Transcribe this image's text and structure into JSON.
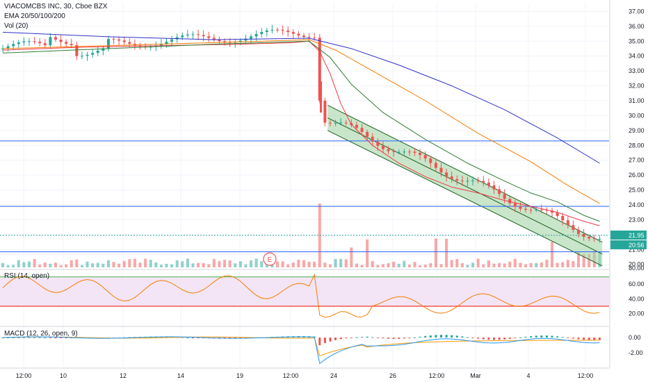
{
  "header": {
    "symbol_line": "VIACOMCBS INC, 30, Cboe BZX",
    "ema_line": "EMA 20/50/100/200",
    "vol_line": "Vol (20)"
  },
  "panels": {
    "rsi_label": "RSI (14, open)",
    "macd_label": "MACD (12, 26, open, 9)"
  },
  "price_axis": {
    "ticks": [
      "37.00",
      "36.00",
      "35.00",
      "34.00",
      "33.00",
      "32.00",
      "31.00",
      "30.00",
      "29.00",
      "28.00",
      "27.00",
      "26.00",
      "25.00",
      "24.00",
      "23.00",
      "22.00",
      "21.00",
      "20.00"
    ],
    "last_price": "21.95",
    "countdown": "20:56",
    "vol_tick": "80.00"
  },
  "rsi_axis": {
    "ticks": [
      "60.00",
      "40.00",
      "20.00"
    ]
  },
  "macd_axis": {
    "ticks": [
      "0.00",
      "-2.00"
    ]
  },
  "time_axis": {
    "ticks": [
      "12:00",
      "10",
      "12",
      "14",
      "19",
      "12:00",
      "24",
      "26",
      "12:00",
      "Mar",
      "4",
      "12:00"
    ]
  },
  "earnings_marker": "E",
  "colors": {
    "up": "#26a69a",
    "down": "#ef5350",
    "ema20": "#f23645",
    "ema50": "#2e7d32",
    "ema100": "#f57c00",
    "ema200": "#3030c8",
    "hline": "#2962ff",
    "channel_fill": "#a5d6a7",
    "rsi_fill": "#f3e5f5",
    "rsi_line": "#f57c00",
    "macd_line": "#2196f3",
    "signal_line": "#ff9800"
  },
  "chart_data": {
    "type": "line",
    "title": "VIACOMCBS INC, 30, Cboe BZX",
    "ylim": [
      19.8,
      37.3
    ],
    "horizontal_levels": [
      28.3,
      23.9,
      20.85
    ],
    "last_price": 21.95,
    "series": [
      {
        "name": "EMA 20",
        "points": [
          [
            0,
            34.4
          ],
          [
            15,
            34.6
          ],
          [
            30,
            34.7
          ],
          [
            45,
            34.8
          ],
          [
            55,
            34.9
          ],
          [
            58,
            35.0
          ],
          [
            60,
            34.3
          ],
          [
            62,
            32.8
          ],
          [
            64,
            30.8
          ],
          [
            66,
            29.4
          ],
          [
            70,
            28.0
          ],
          [
            75,
            26.8
          ],
          [
            80,
            25.9
          ],
          [
            85,
            25.2
          ],
          [
            90,
            24.8
          ],
          [
            95,
            24.3
          ],
          [
            100,
            23.9
          ],
          [
            105,
            23.5
          ],
          [
            110,
            22.9
          ],
          [
            113,
            22.6
          ]
        ]
      },
      {
        "name": "EMA 50",
        "points": [
          [
            0,
            34.2
          ],
          [
            20,
            34.5
          ],
          [
            40,
            34.8
          ],
          [
            58,
            35.0
          ],
          [
            62,
            33.9
          ],
          [
            66,
            32.1
          ],
          [
            72,
            30.2
          ],
          [
            80,
            28.4
          ],
          [
            88,
            26.8
          ],
          [
            95,
            25.6
          ],
          [
            100,
            24.8
          ],
          [
            105,
            24.2
          ],
          [
            110,
            23.3
          ],
          [
            113,
            22.9
          ]
        ]
      },
      {
        "name": "EMA 100",
        "points": [
          [
            0,
            34.5
          ],
          [
            20,
            34.7
          ],
          [
            40,
            34.9
          ],
          [
            58,
            35.1
          ],
          [
            63,
            34.4
          ],
          [
            70,
            33.0
          ],
          [
            80,
            31.0
          ],
          [
            90,
            28.8
          ],
          [
            100,
            26.9
          ],
          [
            107,
            25.3
          ],
          [
            113,
            24.1
          ]
        ]
      },
      {
        "name": "EMA 200",
        "points": [
          [
            0,
            35.6
          ],
          [
            20,
            35.3
          ],
          [
            40,
            35.1
          ],
          [
            58,
            35.2
          ],
          [
            66,
            34.5
          ],
          [
            75,
            33.4
          ],
          [
            85,
            32.0
          ],
          [
            95,
            30.4
          ],
          [
            105,
            28.5
          ],
          [
            113,
            26.8
          ]
        ]
      }
    ]
  }
}
